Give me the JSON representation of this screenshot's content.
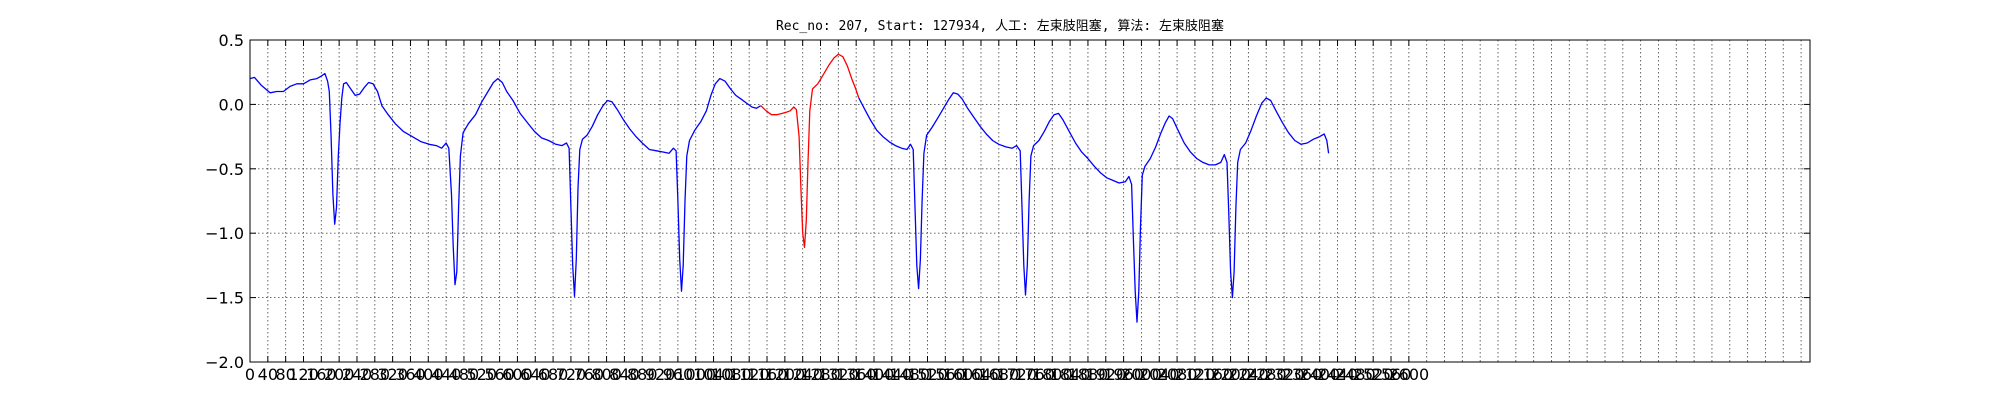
{
  "chart_data": {
    "type": "line",
    "title": "Rec_no: 207, Start: 127934, 人工: 左束肢阻塞, 算法: 左束肢阻塞",
    "xlabel": "",
    "ylabel": "",
    "xlim": [
      0,
      3500
    ],
    "ylim": [
      -2.0,
      0.5
    ],
    "grid": true,
    "y_ticks": [
      0.5,
      0.0,
      -0.5,
      -1.0,
      -1.5,
      -2.0
    ],
    "y_tick_labels": [
      "0.5",
      "0.0",
      "−0.5",
      "−1.0",
      "−1.5",
      "−2.0"
    ],
    "x_ticks": [
      0,
      40,
      80,
      120,
      160,
      200,
      240,
      280,
      320,
      360,
      400,
      440,
      480,
      520,
      560,
      600,
      640,
      680,
      720,
      760,
      800,
      840,
      880,
      920,
      960,
      1000,
      1040,
      1080,
      1120,
      1160,
      1200,
      1240,
      1280,
      1320,
      1360,
      1400,
      1440,
      1480,
      1520,
      1560,
      1600,
      1640,
      1680,
      1720,
      1760,
      1800,
      1840,
      1880,
      1920,
      1960,
      2000,
      2040,
      2080,
      2120,
      2160,
      2200,
      2240,
      2280,
      2320,
      2360,
      2400,
      2440,
      2480,
      2520,
      2560,
      2600
    ],
    "x_tick_labels": [
      "0",
      "40",
      "80",
      "120",
      "160",
      "200",
      "240",
      "280",
      "320",
      "360",
      "400",
      "440",
      "480",
      "520",
      "560",
      "600",
      "640",
      "680",
      "720",
      "760",
      "800",
      "840",
      "880",
      "920",
      "960",
      "1000",
      "1040",
      "1080",
      "1120",
      "1160",
      "1200",
      "1240",
      "1280",
      "1320",
      "1360",
      "1400",
      "1440",
      "1480",
      "1520",
      "1560",
      "1600",
      "1640",
      "1680",
      "1720",
      "1760",
      "1800",
      "1840",
      "1880",
      "1920",
      "1960",
      "2000",
      "2040",
      "2080",
      "2120",
      "2160",
      "2200",
      "2240",
      "2280",
      "2320",
      "2360",
      "2400",
      "2440",
      "2480",
      "2520",
      "2560",
      "2600"
    ],
    "x_grid_step": 40,
    "series": [
      {
        "color": "#0000ff",
        "segment": "before",
        "points": [
          [
            0,
            0.2
          ],
          [
            10,
            0.21
          ],
          [
            25,
            0.15
          ],
          [
            45,
            0.09
          ],
          [
            60,
            0.1
          ],
          [
            75,
            0.1
          ],
          [
            90,
            0.14
          ],
          [
            105,
            0.16
          ],
          [
            120,
            0.16
          ],
          [
            135,
            0.19
          ],
          [
            150,
            0.2
          ],
          [
            160,
            0.22
          ],
          [
            168,
            0.24
          ],
          [
            174,
            0.18
          ],
          [
            178,
            0.1
          ],
          [
            182,
            -0.25
          ],
          [
            186,
            -0.7
          ],
          [
            190,
            -0.93
          ],
          [
            194,
            -0.8
          ],
          [
            198,
            -0.4
          ],
          [
            202,
            -0.15
          ],
          [
            206,
            0.05
          ],
          [
            210,
            0.16
          ],
          [
            216,
            0.17
          ],
          [
            226,
            0.12
          ],
          [
            236,
            0.07
          ],
          [
            246,
            0.08
          ],
          [
            256,
            0.13
          ],
          [
            266,
            0.17
          ],
          [
            276,
            0.16
          ],
          [
            286,
            0.1
          ],
          [
            296,
            -0.01
          ],
          [
            310,
            -0.08
          ],
          [
            326,
            -0.15
          ],
          [
            344,
            -0.21
          ],
          [
            364,
            -0.25
          ],
          [
            384,
            -0.29
          ],
          [
            402,
            -0.31
          ],
          [
            418,
            -0.32
          ],
          [
            430,
            -0.34
          ],
          [
            440,
            -0.3
          ],
          [
            446,
            -0.34
          ],
          [
            452,
            -0.7
          ],
          [
            456,
            -1.1
          ],
          [
            460,
            -1.4
          ],
          [
            464,
            -1.3
          ],
          [
            468,
            -0.8
          ],
          [
            472,
            -0.4
          ],
          [
            478,
            -0.22
          ],
          [
            490,
            -0.15
          ],
          [
            506,
            -0.08
          ],
          [
            520,
            0.02
          ],
          [
            534,
            0.1
          ],
          [
            546,
            0.17
          ],
          [
            556,
            0.2
          ],
          [
            566,
            0.17
          ],
          [
            576,
            0.1
          ],
          [
            590,
            0.03
          ],
          [
            606,
            -0.07
          ],
          [
            622,
            -0.14
          ],
          [
            638,
            -0.21
          ],
          [
            654,
            -0.26
          ],
          [
            670,
            -0.28
          ],
          [
            686,
            -0.31
          ],
          [
            700,
            -0.32
          ],
          [
            710,
            -0.3
          ],
          [
            716,
            -0.34
          ],
          [
            720,
            -0.8
          ],
          [
            724,
            -1.25
          ],
          [
            728,
            -1.49
          ],
          [
            732,
            -1.2
          ],
          [
            736,
            -0.65
          ],
          [
            740,
            -0.35
          ],
          [
            746,
            -0.27
          ],
          [
            756,
            -0.24
          ],
          [
            768,
            -0.17
          ],
          [
            780,
            -0.08
          ],
          [
            792,
            -0.01
          ],
          [
            802,
            0.03
          ],
          [
            812,
            0.02
          ],
          [
            824,
            -0.04
          ],
          [
            838,
            -0.12
          ],
          [
            852,
            -0.19
          ],
          [
            866,
            -0.25
          ],
          [
            880,
            -0.3
          ],
          [
            896,
            -0.35
          ],
          [
            912,
            -0.36
          ],
          [
            928,
            -0.37
          ],
          [
            940,
            -0.38
          ],
          [
            950,
            -0.34
          ],
          [
            956,
            -0.36
          ],
          [
            960,
            -0.75
          ],
          [
            964,
            -1.2
          ],
          [
            968,
            -1.45
          ],
          [
            972,
            -1.25
          ],
          [
            976,
            -0.75
          ],
          [
            980,
            -0.4
          ],
          [
            986,
            -0.28
          ],
          [
            998,
            -0.2
          ],
          [
            1012,
            -0.13
          ],
          [
            1024,
            -0.05
          ],
          [
            1034,
            0.07
          ],
          [
            1044,
            0.16
          ],
          [
            1054,
            0.2
          ],
          [
            1066,
            0.18
          ],
          [
            1078,
            0.12
          ],
          [
            1090,
            0.07
          ],
          [
            1102,
            0.04
          ],
          [
            1114,
            0.01
          ],
          [
            1126,
            -0.02
          ],
          [
            1136,
            -0.03
          ],
          [
            1146,
            -0.01
          ]
        ]
      },
      {
        "color": "#ff0000",
        "segment": "annotated-beat",
        "points": [
          [
            1146,
            -0.01
          ],
          [
            1158,
            -0.05
          ],
          [
            1170,
            -0.08
          ],
          [
            1182,
            -0.08
          ],
          [
            1194,
            -0.07
          ],
          [
            1204,
            -0.06
          ],
          [
            1212,
            -0.05
          ],
          [
            1220,
            -0.02
          ],
          [
            1226,
            -0.04
          ],
          [
            1232,
            -0.25
          ],
          [
            1236,
            -0.65
          ],
          [
            1240,
            -1.0
          ],
          [
            1244,
            -1.11
          ],
          [
            1248,
            -0.9
          ],
          [
            1252,
            -0.45
          ],
          [
            1256,
            -0.05
          ],
          [
            1262,
            0.12
          ],
          [
            1274,
            0.16
          ],
          [
            1286,
            0.23
          ],
          [
            1298,
            0.3
          ],
          [
            1310,
            0.36
          ],
          [
            1320,
            0.39
          ],
          [
            1330,
            0.37
          ],
          [
            1340,
            0.3
          ],
          [
            1350,
            0.2
          ],
          [
            1358,
            0.13
          ],
          [
            1366,
            0.05
          ]
        ]
      },
      {
        "color": "#0000ff",
        "segment": "after",
        "points": [
          [
            1366,
            0.05
          ],
          [
            1378,
            -0.03
          ],
          [
            1392,
            -0.12
          ],
          [
            1406,
            -0.2
          ],
          [
            1420,
            -0.25
          ],
          [
            1434,
            -0.29
          ],
          [
            1448,
            -0.32
          ],
          [
            1462,
            -0.34
          ],
          [
            1474,
            -0.35
          ],
          [
            1482,
            -0.31
          ],
          [
            1488,
            -0.35
          ],
          [
            1492,
            -0.8
          ],
          [
            1496,
            -1.25
          ],
          [
            1500,
            -1.43
          ],
          [
            1504,
            -1.2
          ],
          [
            1508,
            -0.75
          ],
          [
            1512,
            -0.38
          ],
          [
            1518,
            -0.24
          ],
          [
            1530,
            -0.18
          ],
          [
            1544,
            -0.1
          ],
          [
            1556,
            -0.03
          ],
          [
            1568,
            0.04
          ],
          [
            1578,
            0.09
          ],
          [
            1588,
            0.08
          ],
          [
            1598,
            0.04
          ],
          [
            1610,
            -0.03
          ],
          [
            1624,
            -0.1
          ],
          [
            1638,
            -0.17
          ],
          [
            1652,
            -0.23
          ],
          [
            1666,
            -0.28
          ],
          [
            1680,
            -0.31
          ],
          [
            1696,
            -0.33
          ],
          [
            1710,
            -0.34
          ],
          [
            1720,
            -0.32
          ],
          [
            1728,
            -0.36
          ],
          [
            1732,
            -0.8
          ],
          [
            1736,
            -1.25
          ],
          [
            1740,
            -1.48
          ],
          [
            1744,
            -1.25
          ],
          [
            1748,
            -0.75
          ],
          [
            1752,
            -0.4
          ],
          [
            1758,
            -0.32
          ],
          [
            1770,
            -0.28
          ],
          [
            1782,
            -0.21
          ],
          [
            1794,
            -0.13
          ],
          [
            1804,
            -0.08
          ],
          [
            1814,
            -0.07
          ],
          [
            1824,
            -0.12
          ],
          [
            1838,
            -0.21
          ],
          [
            1852,
            -0.3
          ],
          [
            1866,
            -0.37
          ],
          [
            1880,
            -0.42
          ],
          [
            1894,
            -0.48
          ],
          [
            1908,
            -0.53
          ],
          [
            1922,
            -0.57
          ],
          [
            1936,
            -0.59
          ],
          [
            1950,
            -0.61
          ],
          [
            1964,
            -0.6
          ],
          [
            1972,
            -0.56
          ],
          [
            1978,
            -0.62
          ],
          [
            1982,
            -1.05
          ],
          [
            1986,
            -1.45
          ],
          [
            1990,
            -1.69
          ],
          [
            1994,
            -1.45
          ],
          [
            1998,
            -0.95
          ],
          [
            2002,
            -0.55
          ],
          [
            2008,
            -0.48
          ],
          [
            2020,
            -0.42
          ],
          [
            2032,
            -0.33
          ],
          [
            2044,
            -0.22
          ],
          [
            2054,
            -0.14
          ],
          [
            2062,
            -0.09
          ],
          [
            2070,
            -0.11
          ],
          [
            2082,
            -0.2
          ],
          [
            2096,
            -0.3
          ],
          [
            2110,
            -0.37
          ],
          [
            2124,
            -0.42
          ],
          [
            2138,
            -0.45
          ],
          [
            2152,
            -0.47
          ],
          [
            2166,
            -0.47
          ],
          [
            2178,
            -0.45
          ],
          [
            2186,
            -0.39
          ],
          [
            2192,
            -0.45
          ],
          [
            2196,
            -0.85
          ],
          [
            2200,
            -1.3
          ],
          [
            2204,
            -1.5
          ],
          [
            2208,
            -1.3
          ],
          [
            2212,
            -0.8
          ],
          [
            2216,
            -0.45
          ],
          [
            2222,
            -0.35
          ],
          [
            2234,
            -0.3
          ],
          [
            2246,
            -0.2
          ],
          [
            2258,
            -0.09
          ],
          [
            2270,
            0.01
          ],
          [
            2280,
            0.05
          ],
          [
            2290,
            0.03
          ],
          [
            2302,
            -0.05
          ],
          [
            2316,
            -0.14
          ],
          [
            2330,
            -0.22
          ],
          [
            2344,
            -0.28
          ],
          [
            2358,
            -0.31
          ],
          [
            2372,
            -0.3
          ],
          [
            2386,
            -0.27
          ],
          [
            2400,
            -0.25
          ],
          [
            2410,
            -0.23
          ],
          [
            2416,
            -0.28
          ],
          [
            2420,
            -0.38
          ]
        ]
      }
    ]
  }
}
